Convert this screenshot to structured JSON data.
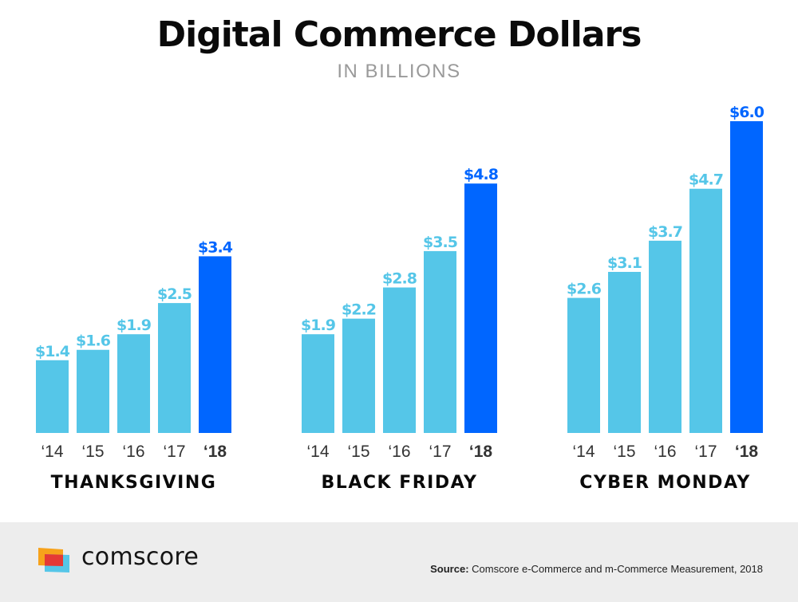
{
  "header": {
    "title": "Digital Commerce Dollars",
    "subtitle": "IN BILLIONS"
  },
  "colors": {
    "previous_years": "#55c6e8",
    "current_year": "#0066ff",
    "year_label": "#333333",
    "group_label": "#0a0a0a"
  },
  "chart_data": {
    "type": "bar",
    "title": "Digital Commerce Dollars",
    "subtitle": "IN BILLIONS",
    "xlabel": "",
    "ylabel": "",
    "ylim": [
      0,
      6.0
    ],
    "grid": false,
    "categories": [
      "‘14",
      "‘15",
      "‘16",
      "‘17",
      "‘18"
    ],
    "groups": [
      {
        "name": "THANKSGIVING",
        "values": [
          1.4,
          1.6,
          1.9,
          2.5,
          3.4
        ],
        "labels": [
          "$1.4",
          "$1.6",
          "$1.9",
          "$2.5",
          "$3.4"
        ]
      },
      {
        "name": "BLACK FRIDAY",
        "values": [
          1.9,
          2.2,
          2.8,
          3.5,
          4.8
        ],
        "labels": [
          "$1.9",
          "$2.2",
          "$2.8",
          "$3.5",
          "$4.8"
        ]
      },
      {
        "name": "CYBER MONDAY",
        "values": [
          2.6,
          3.1,
          3.7,
          4.7,
          6.0
        ],
        "labels": [
          "$2.6",
          "$3.1",
          "$3.7",
          "$4.7",
          "$6.0"
        ]
      }
    ]
  },
  "footer": {
    "brand": "comscore",
    "source_label": "Source:",
    "source_text": " Comscore e-Commerce and m-Commerce Measurement, 2018"
  }
}
